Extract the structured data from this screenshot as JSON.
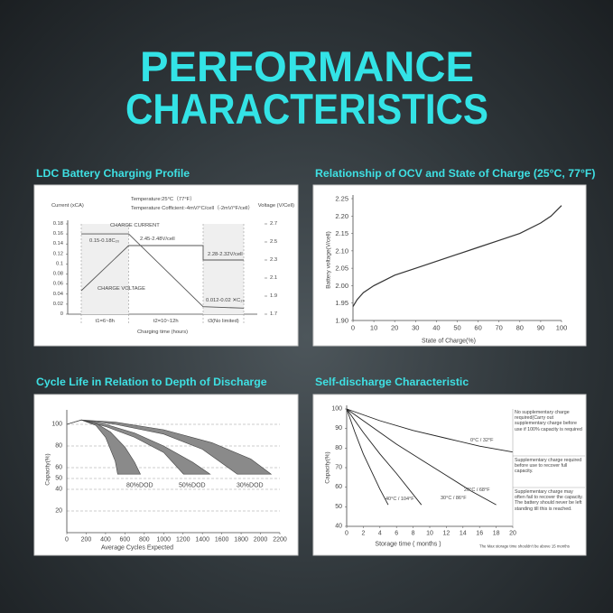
{
  "title_lines": [
    "PERFORMANCE",
    "CHARACTERISTICS"
  ],
  "chart_data": [
    {
      "type": "line",
      "title": "LDC Battery Charging Profile",
      "subtitle_lines": [
        "Temperature:25°C（77°F）",
        "Temperature Cofficient:-4mV/°C/cell（-2mV/°F/cell）"
      ],
      "ylabel": "Current (xCA)",
      "y2label": "Voltage (V/Cell)",
      "xlabel": "Charging time (hours)",
      "xlim": [
        -2,
        26
      ],
      "ylim": [
        0,
        0.18
      ],
      "yticks": [
        0,
        0.02,
        0.04,
        0.06,
        0.08,
        0.1,
        0.12,
        0.14,
        0.16,
        0.18
      ],
      "y2lim": [
        1.7,
        2.7
      ],
      "y2ticks": [
        1.7,
        1.9,
        2.1,
        2.3,
        2.5,
        2.7
      ],
      "phase_bounds": [
        0,
        7,
        18,
        24
      ],
      "phase_labels": [
        "t1=6~8h",
        "t2=10~12h",
        "t3(No limited)"
      ],
      "series": [
        {
          "name": "CHARGE CURRENT",
          "color": "#555555",
          "x": [
            0,
            7,
            18,
            24
          ],
          "values": [
            0.16,
            0.16,
            0.015,
            0.012
          ]
        },
        {
          "name": "CHARGE VOLTAGE",
          "color": "#555555",
          "axis": "y2",
          "x": [
            0,
            7,
            18,
            18,
            24
          ],
          "values": [
            1.96,
            2.46,
            2.46,
            2.3,
            2.3
          ]
        }
      ],
      "annotations": [
        "0.15-0.18C₂₀",
        "2.45-2.48V/cell",
        "2.28-2.32V/cell",
        "0.012-0.02 ✕C₂₀"
      ]
    },
    {
      "type": "line",
      "title": "Relationship of OCV and State of Charge (25°C, 77°F)",
      "xlabel": "State of Charge(%)",
      "ylabel": "Battery voltage(V/cell)",
      "xlim": [
        0,
        100
      ],
      "xticks": [
        0,
        10,
        20,
        30,
        40,
        50,
        60,
        70,
        80,
        90,
        100
      ],
      "ylim": [
        1.9,
        2.25
      ],
      "yticks": [
        {
          "value": 1.9,
          "label": "1.90"
        },
        {
          "value": 1.95,
          "label": "1.95"
        },
        {
          "value": 2,
          "label": "2.00"
        },
        {
          "value": 2.05,
          "label": "2.05"
        },
        {
          "value": 2.1,
          "label": "2.10"
        },
        {
          "value": 2.15,
          "label": "2.15"
        },
        {
          "value": 2.2,
          "label": "2.20"
        },
        {
          "value": 2.25,
          "label": "2.25"
        }
      ],
      "series": [
        {
          "color": "#333333",
          "x": [
            0,
            2,
            5,
            10,
            20,
            30,
            40,
            50,
            60,
            70,
            80,
            90,
            95,
            100
          ],
          "values": [
            1.94,
            1.96,
            1.98,
            2.0,
            2.03,
            2.05,
            2.07,
            2.09,
            2.11,
            2.13,
            2.15,
            2.18,
            2.2,
            2.23
          ]
        }
      ]
    },
    {
      "type": "area",
      "title": "Cycle Life in Relation to Depth of Discharge",
      "xlabel": "Average Cycles Expected",
      "ylabel": "Capacity(%)",
      "xlim": [
        0,
        2200
      ],
      "xticks": [
        0,
        200,
        400,
        600,
        800,
        1000,
        1200,
        1400,
        1600,
        1800,
        2000,
        2200
      ],
      "ylim": [
        0,
        110
      ],
      "yticks": [
        20,
        40,
        50,
        60,
        80,
        100
      ],
      "grid": true,
      "series": [
        {
          "name": "80%DOD",
          "color": "#8a8a8a",
          "x_upper": [
            0,
            150,
            300,
            450,
            600,
            700,
            760
          ],
          "upper": [
            100,
            104,
            101,
            93,
            79,
            65,
            54
          ],
          "x_lower": [
            0,
            150,
            300,
            400,
            500,
            525
          ],
          "lower": [
            100,
            104,
            99,
            88,
            66,
            54
          ]
        },
        {
          "name": "50%DOD",
          "color": "#8a8a8a",
          "x_upper": [
            0,
            150,
            400,
            700,
            1000,
            1300,
            1480
          ],
          "upper": [
            100,
            104,
            100,
            92,
            80,
            65,
            54
          ],
          "x_lower": [
            0,
            150,
            400,
            700,
            1000,
            1205
          ],
          "lower": [
            100,
            104,
            98,
            88,
            74,
            54
          ]
        },
        {
          "name": "30%DOD",
          "color": "#8a8a8a",
          "x_upper": [
            0,
            150,
            500,
            1000,
            1500,
            1900,
            2110
          ],
          "upper": [
            100,
            104,
            102,
            95,
            83,
            68,
            54
          ],
          "x_lower": [
            0,
            150,
            500,
            1000,
            1400,
            1760
          ],
          "lower": [
            100,
            104,
            100,
            91,
            77,
            54
          ]
        }
      ]
    },
    {
      "type": "line",
      "title": "Self-discharge Characteristic",
      "xlabel": "Storage time ( months )",
      "ylabel": "Capacity(%)",
      "xlim": [
        0,
        20
      ],
      "xticks": [
        0,
        2,
        4,
        6,
        8,
        10,
        12,
        14,
        16,
        18,
        20
      ],
      "ylim": [
        40,
        100
      ],
      "yticks": [
        40,
        50,
        60,
        70,
        80,
        90,
        100
      ],
      "series": [
        {
          "name": "0°C / 32°F",
          "color": "#222222",
          "x": [
            0,
            4,
            8,
            12,
            16,
            20
          ],
          "values": [
            100,
            94,
            89,
            85,
            81,
            78
          ]
        },
        {
          "name": "20°C / 68°F",
          "color": "#222222",
          "x": [
            0,
            3,
            6,
            9,
            12,
            15,
            18
          ],
          "values": [
            100,
            91,
            82,
            74,
            66,
            58,
            51
          ]
        },
        {
          "name": "30°C / 86°F",
          "color": "#222222",
          "x": [
            0,
            2,
            4,
            6,
            9
          ],
          "values": [
            100,
            88,
            77,
            67,
            51
          ]
        },
        {
          "name": "40°C / 104°F",
          "color": "#222222",
          "x": [
            0,
            1,
            2,
            3,
            4,
            5
          ],
          "values": [
            100,
            88,
            77,
            68,
            59,
            51
          ]
        }
      ],
      "notes": [
        "No supplementary charge required(Carry out supplementary charge before use if 100% capacity is required",
        "Supplementary charge required before use to recover full capacity.",
        "Supplementary charge may often fail to recover the capacity. The battery should never be left standing till this is reached."
      ],
      "footnote": "The Max storage time shouldn't be above 15 months"
    }
  ]
}
